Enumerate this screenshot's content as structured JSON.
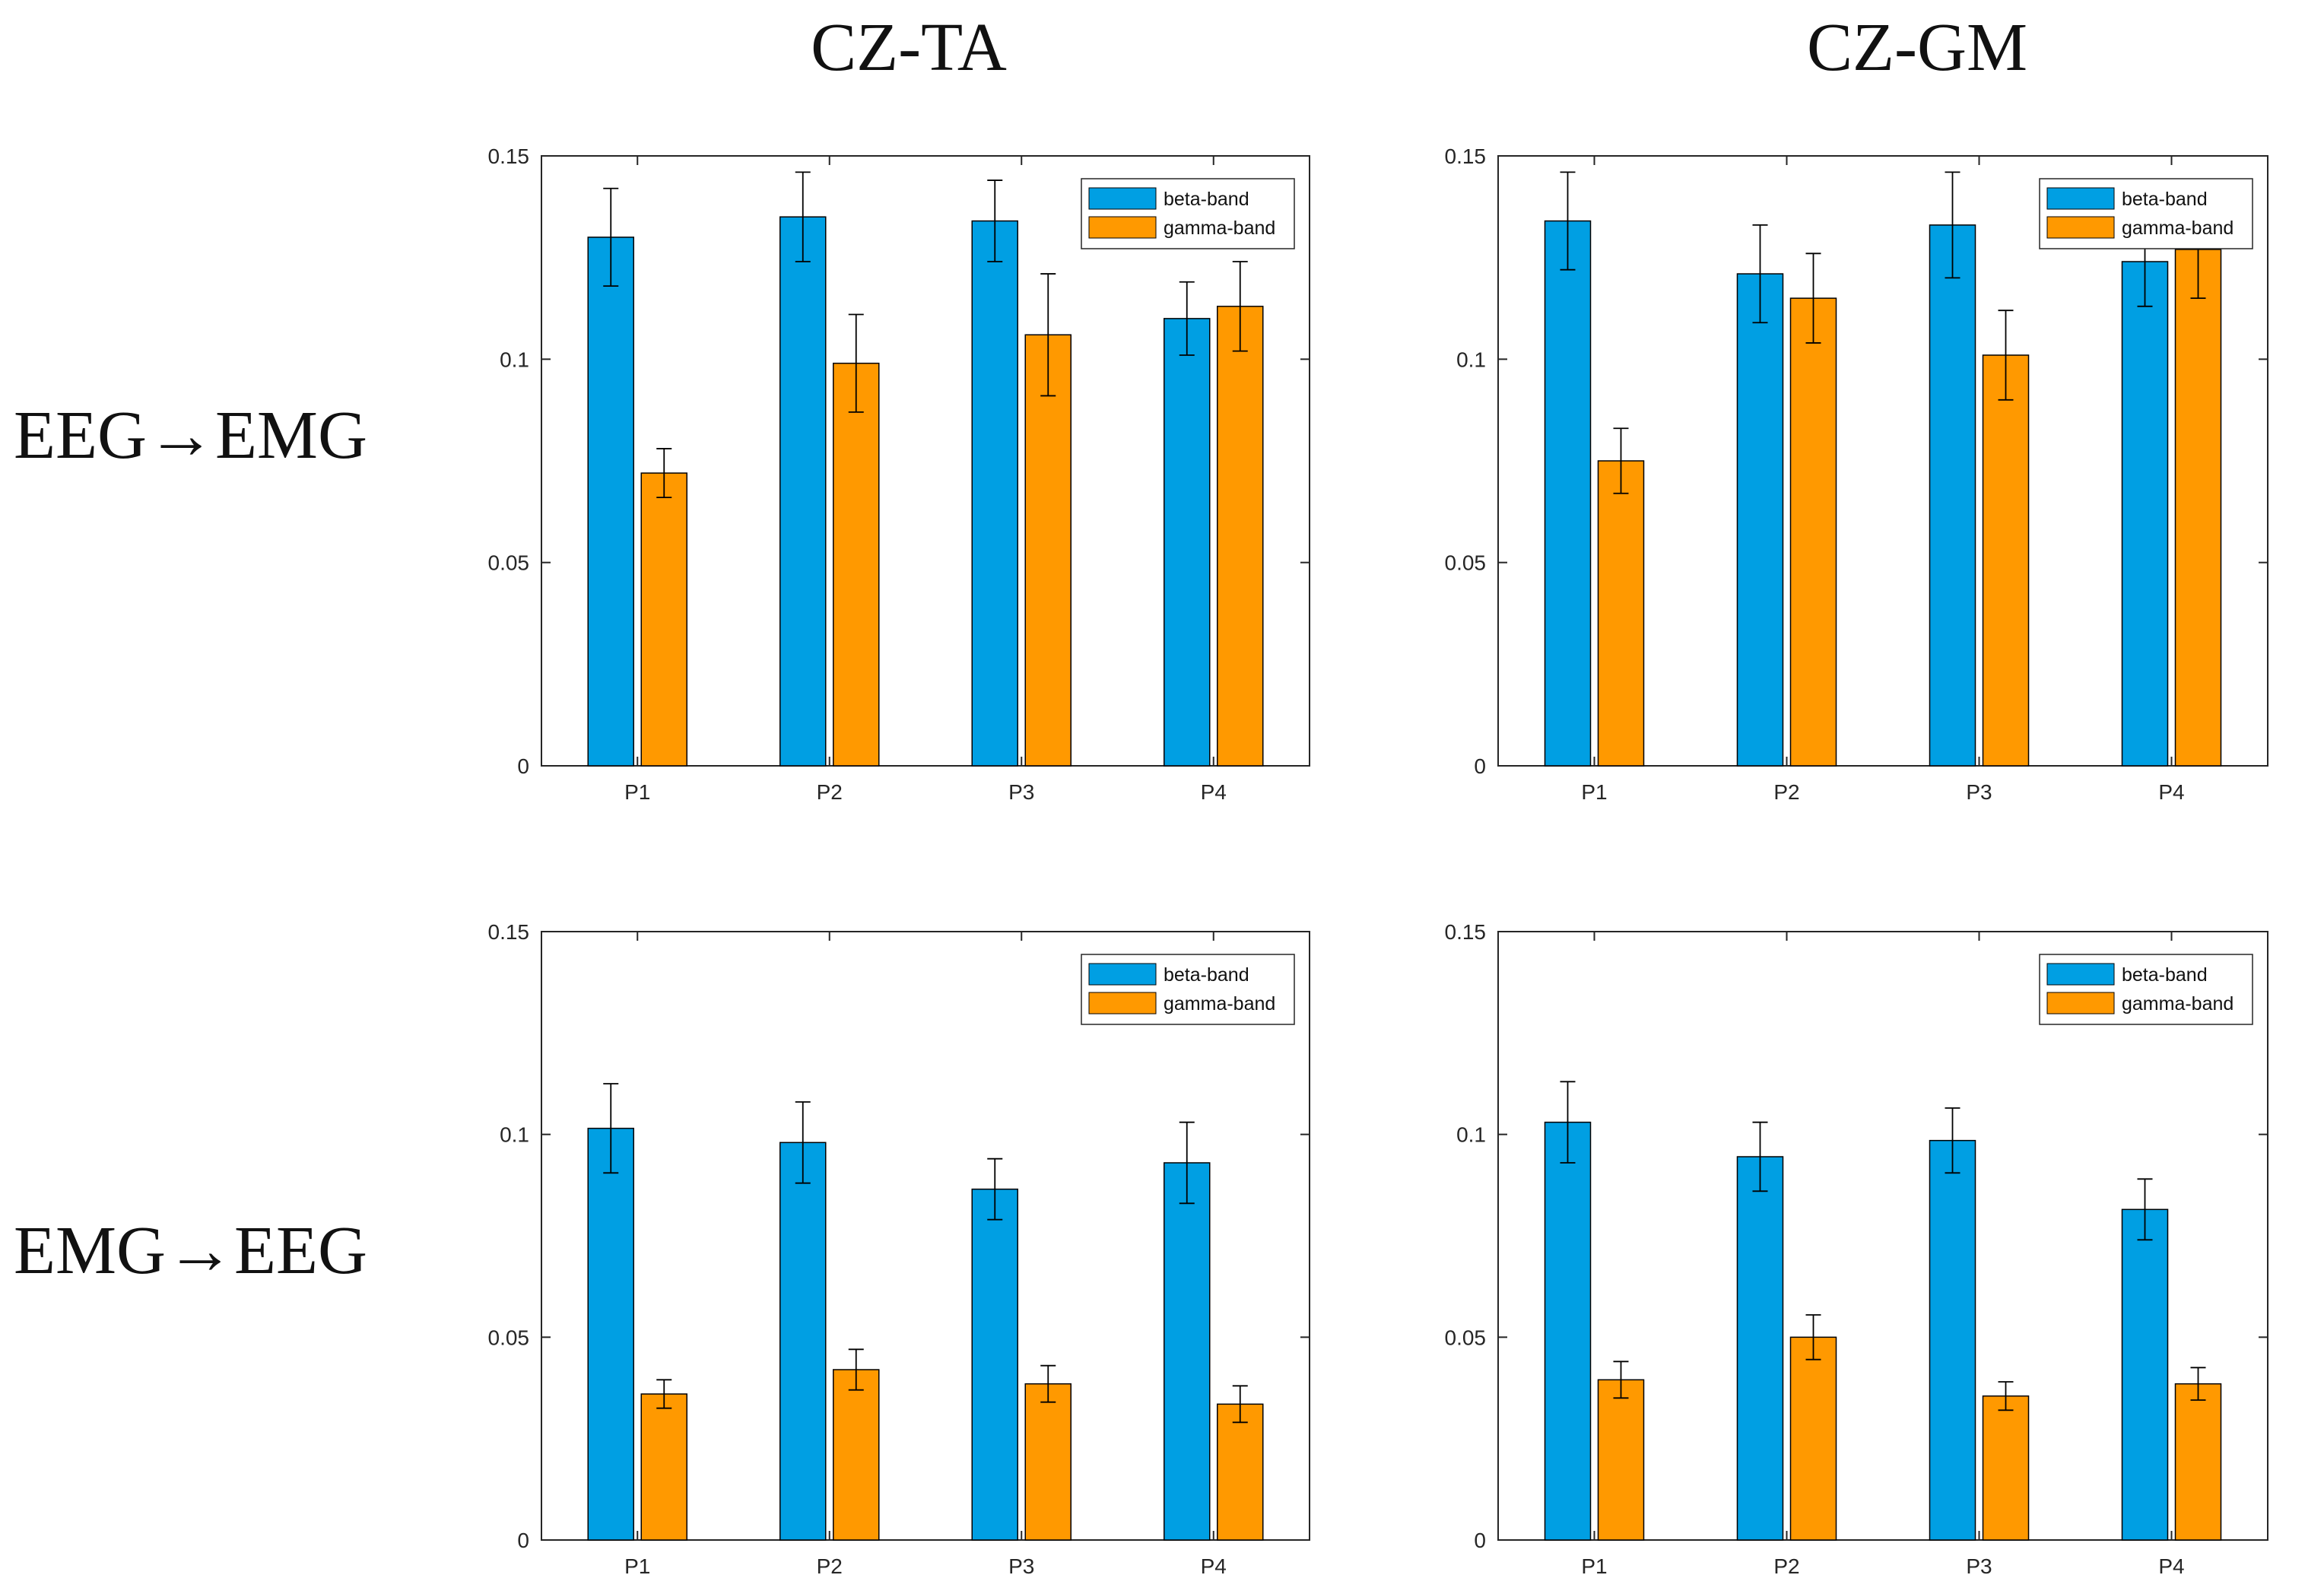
{
  "column_titles": [
    "CZ-TA",
    "CZ-GM"
  ],
  "row_labels": [
    "EEG→EMG",
    "EMG→EEG"
  ],
  "colors": {
    "beta": "#009fe3",
    "gamma": "#ff9900",
    "axis": "#262626",
    "error": "#000000"
  },
  "chart_data": [
    {
      "id": "eeg-emg-cz-ta",
      "type": "bar",
      "title": "CZ-TA",
      "row": "EEG→EMG",
      "categories": [
        "P1",
        "P2",
        "P3",
        "P4"
      ],
      "series": [
        {
          "name": "beta-band",
          "values": [
            0.13,
            0.135,
            0.134,
            0.11
          ],
          "errors": [
            0.012,
            0.011,
            0.01,
            0.009
          ]
        },
        {
          "name": "gamma-band",
          "values": [
            0.072,
            0.099,
            0.106,
            0.113
          ],
          "errors": [
            0.006,
            0.012,
            0.015,
            0.011
          ]
        }
      ],
      "ylim": [
        0,
        0.15
      ],
      "yticks": [
        "0",
        "0.05",
        "0.1",
        "0.15"
      ],
      "legend": "top-right"
    },
    {
      "id": "eeg-emg-cz-gm",
      "type": "bar",
      "title": "CZ-GM",
      "row": "EEG→EMG",
      "categories": [
        "P1",
        "P2",
        "P3",
        "P4"
      ],
      "series": [
        {
          "name": "beta-band",
          "values": [
            0.134,
            0.121,
            0.133,
            0.124
          ],
          "errors": [
            0.012,
            0.012,
            0.013,
            0.011
          ]
        },
        {
          "name": "gamma-band",
          "values": [
            0.075,
            0.115,
            0.101,
            0.127
          ],
          "errors": [
            0.008,
            0.011,
            0.011,
            0.012
          ]
        }
      ],
      "ylim": [
        0,
        0.15
      ],
      "yticks": [
        "0",
        "0.05",
        "0.1",
        "0.15"
      ],
      "legend": "top-right"
    },
    {
      "id": "emg-eeg-cz-ta",
      "type": "bar",
      "title": "CZ-TA",
      "row": "EMG→EEG",
      "categories": [
        "P1",
        "P2",
        "P3",
        "P4"
      ],
      "series": [
        {
          "name": "beta-band",
          "values": [
            0.1015,
            0.098,
            0.0865,
            0.093
          ],
          "errors": [
            0.011,
            0.01,
            0.0075,
            0.01
          ]
        },
        {
          "name": "gamma-band",
          "values": [
            0.036,
            0.042,
            0.0385,
            0.0335
          ],
          "errors": [
            0.0035,
            0.005,
            0.0045,
            0.0045
          ]
        }
      ],
      "ylim": [
        0,
        0.15
      ],
      "yticks": [
        "0",
        "0.05",
        "0.1",
        "0.15"
      ],
      "legend": "top-right"
    },
    {
      "id": "emg-eeg-cz-gm",
      "type": "bar",
      "title": "CZ-GM",
      "row": "EMG→EEG",
      "categories": [
        "P1",
        "P2",
        "P3",
        "P4"
      ],
      "series": [
        {
          "name": "beta-band",
          "values": [
            0.103,
            0.0945,
            0.0985,
            0.0815
          ],
          "errors": [
            0.01,
            0.0085,
            0.008,
            0.0075
          ]
        },
        {
          "name": "gamma-band",
          "values": [
            0.0395,
            0.05,
            0.0355,
            0.0385
          ],
          "errors": [
            0.0045,
            0.0055,
            0.0035,
            0.004
          ]
        }
      ],
      "ylim": [
        0,
        0.15
      ],
      "yticks": [
        "0",
        "0.05",
        "0.1",
        "0.15"
      ],
      "legend": "top-right"
    }
  ]
}
